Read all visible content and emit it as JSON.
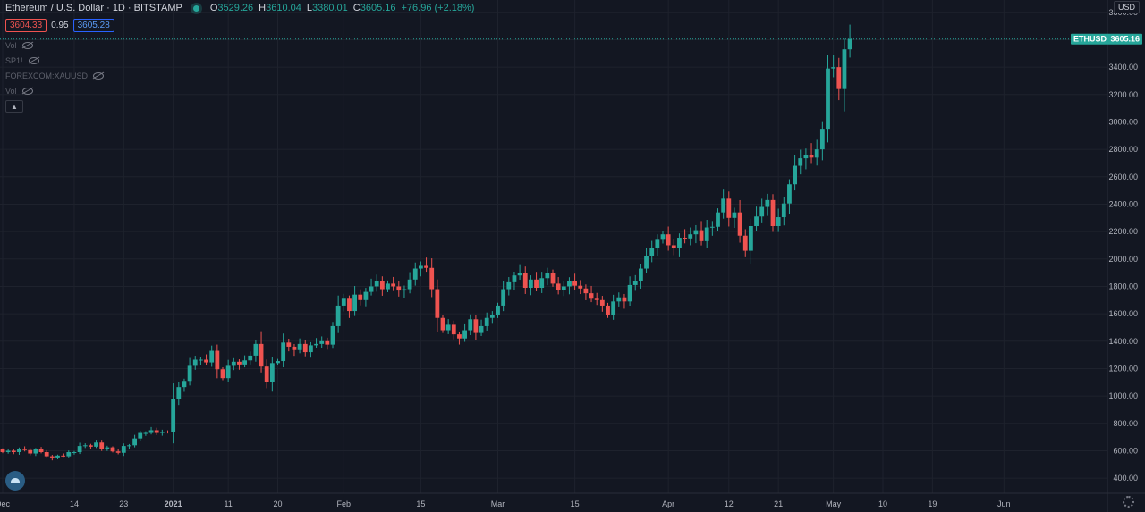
{
  "legend": {
    "symbol_title": "Ethereum / U.S. Dollar · 1D · BITSTAMP",
    "open_key": "O",
    "open_value": "3529.26",
    "high_key": "H",
    "high_value": "3610.04",
    "low_key": "L",
    "low_value": "3380.01",
    "close_key": "C",
    "close_value": "3605.16",
    "change": "+76.96 (+2.18%)"
  },
  "prices": {
    "sell": "3604.33",
    "spread": "0.95",
    "buy": "3605.28"
  },
  "studies": [
    "Vol",
    "SP1!",
    "FOREXCOM:XAUUSD",
    "Vol"
  ],
  "currency_label": "USD",
  "colors": {
    "background": "#131722",
    "up": "#26a69a",
    "down": "#ef5350",
    "grid": "#1e222d",
    "axis_text": "#b2b5be"
  },
  "icons": [
    "live-status-icon",
    "eye-hidden-icon",
    "chevron-up-icon",
    "tradingview-logo-icon",
    "gear-icon"
  ],
  "chart_data": {
    "type": "candlestick",
    "symbol": "ETHUSD",
    "last_price": "3605.16",
    "y_ticks": [
      400,
      600,
      800,
      1000,
      1200,
      1400,
      1600,
      1800,
      2000,
      2200,
      2400,
      2600,
      2800,
      3000,
      3200,
      3400,
      3600,
      3800
    ],
    "y_tick_labels": [
      "400.00",
      "600.00",
      "800.00",
      "1000.00",
      "1200.00",
      "1400.00",
      "1600.00",
      "1800.00",
      "2000.00",
      "2200.00",
      "2400.00",
      "2600.00",
      "2800.00",
      "3000.00",
      "3200.00",
      "3400.00",
      "3600.00",
      "3800.00"
    ],
    "ylim": [
      290,
      3890
    ],
    "x_ticks": [
      {
        "label": "Dec",
        "index": 0
      },
      {
        "label": "14",
        "index": 13
      },
      {
        "label": "23",
        "index": 22
      },
      {
        "label": "2021",
        "index": 31
      },
      {
        "label": "11",
        "index": 41
      },
      {
        "label": "20",
        "index": 50
      },
      {
        "label": "Feb",
        "index": 62
      },
      {
        "label": "15",
        "index": 76
      },
      {
        "label": "Mar",
        "index": 90
      },
      {
        "label": "15",
        "index": 104
      },
      {
        "label": "Apr",
        "index": 121
      },
      {
        "label": "12",
        "index": 132
      },
      {
        "label": "21",
        "index": 141
      },
      {
        "label": "May",
        "index": 151
      },
      {
        "label": "10",
        "index": 160
      },
      {
        "label": "19",
        "index": 169
      },
      {
        "label": "Jun",
        "index": 182
      }
    ],
    "closes": [
      590,
      600,
      590,
      615,
      605,
      580,
      610,
      590,
      560,
      545,
      565,
      560,
      590,
      590,
      635,
      640,
      630,
      660,
      615,
      625,
      595,
      585,
      635,
      640,
      690,
      730,
      730,
      750,
      730,
      740,
      735,
      975,
      1065,
      1110,
      1220,
      1265,
      1265,
      1245,
      1330,
      1195,
      1130,
      1220,
      1250,
      1230,
      1260,
      1295,
      1380,
      1215,
      1100,
      1240,
      1255,
      1390,
      1360,
      1335,
      1380,
      1320,
      1370,
      1380,
      1400,
      1375,
      1510,
      1660,
      1710,
      1620,
      1740,
      1700,
      1760,
      1800,
      1840,
      1780,
      1820,
      1800,
      1770,
      1780,
      1850,
      1930,
      1950,
      1935,
      1780,
      1570,
      1480,
      1520,
      1450,
      1420,
      1480,
      1560,
      1460,
      1510,
      1570,
      1590,
      1660,
      1780,
      1830,
      1880,
      1900,
      1790,
      1850,
      1790,
      1860,
      1900,
      1820,
      1775,
      1800,
      1840,
      1805,
      1785,
      1750,
      1710,
      1700,
      1660,
      1590,
      1690,
      1720,
      1690,
      1810,
      1840,
      1930,
      2020,
      2080,
      2140,
      2180,
      2100,
      2080,
      2155,
      2150,
      2180,
      2210,
      2130,
      2230,
      2235,
      2340,
      2440,
      2300,
      2340,
      2170,
      2060,
      2240,
      2310,
      2380,
      2430,
      2240,
      2305,
      2405,
      2545,
      2680,
      2735,
      2760,
      2740,
      2800,
      2950,
      3390,
      3400,
      3240,
      3530,
      3605
    ],
    "first_open": 610
  }
}
